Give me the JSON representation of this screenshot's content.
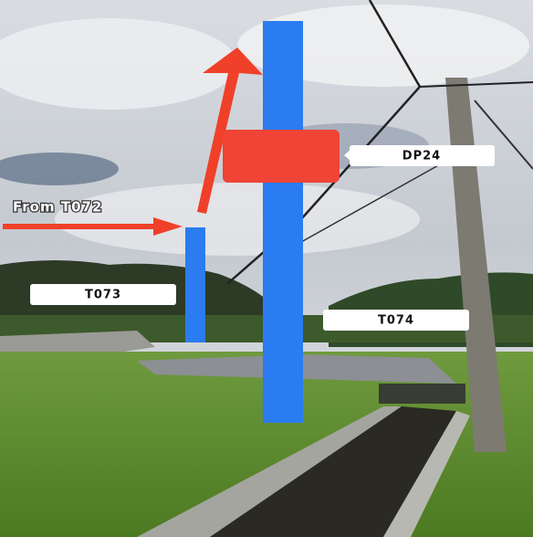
{
  "annotations": {
    "incoming": "From T072",
    "pole_left": "T073",
    "box": "DP24",
    "pole_center": "T074"
  }
}
